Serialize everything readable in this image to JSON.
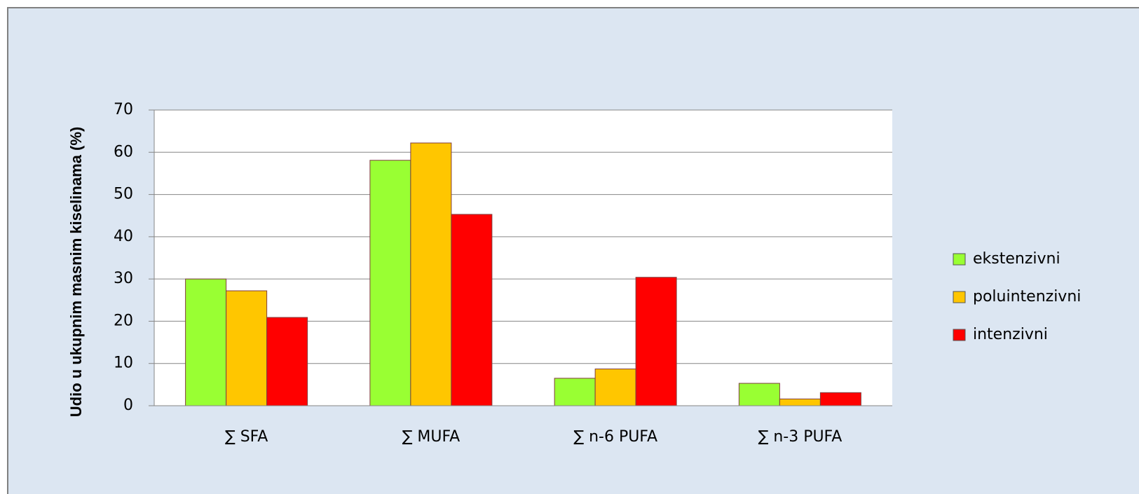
{
  "chart_data": {
    "type": "bar",
    "y_label": "Udio u ukupnim masnim kiselinama (%)",
    "categories": [
      "∑ SFA",
      "∑ MUFA",
      "∑ n-6 PUFA",
      "∑ n-3 PUFA"
    ],
    "series": [
      {
        "name": "ekstenzivni",
        "color": "#99ff33",
        "values": [
          30,
          58.1,
          6.5,
          5.3
        ]
      },
      {
        "name": "poluintenzivni",
        "color": "#ffc600",
        "values": [
          27.2,
          62.2,
          8.7,
          1.6
        ]
      },
      {
        "name": "intenzivni",
        "color": "#ff0000",
        "values": [
          20.9,
          45.3,
          30.4,
          3.1
        ]
      }
    ],
    "ylim": [
      0,
      70
    ],
    "yticks": [
      0,
      10,
      20,
      30,
      40,
      50,
      60,
      70
    ],
    "grid": true,
    "legend": "right"
  }
}
